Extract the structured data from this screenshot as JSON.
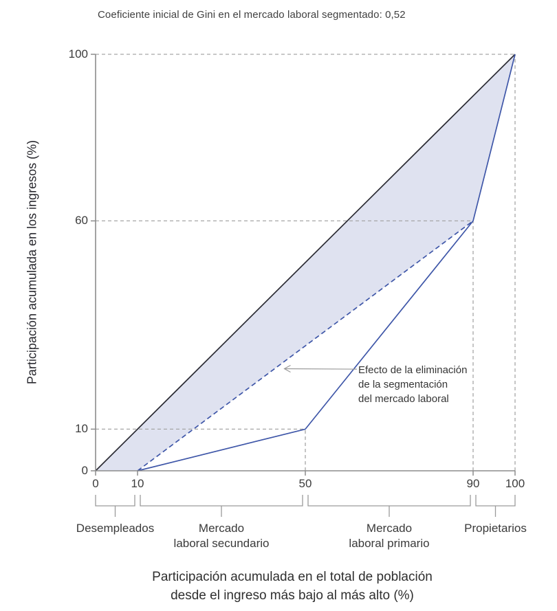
{
  "chart_data": {
    "type": "line",
    "title": "Coeficiente inicial de Gini en el mercado laboral segmentado: 0,52",
    "ylabel": "Participación acumulada en los ingresos (%)",
    "xlabel_lines": [
      "Participación acumulada en el total de población",
      "desde el ingreso más bajo al más alto (%)"
    ],
    "xlim": [
      0,
      100
    ],
    "ylim": [
      0,
      100
    ],
    "x_ticks": [
      0,
      10,
      50,
      90,
      100
    ],
    "y_ticks": [
      0,
      10,
      60,
      100
    ],
    "legend_position": "none",
    "grid": "dashed guide lines at key points only",
    "colors": {
      "curve_blue": "#3e56a8",
      "equality_black": "#2b2b33",
      "fill_lavender": "#dfe2f0",
      "axis_gray": "#8c8c8c",
      "guide_gray": "#a6a6a6",
      "bracket_gray": "#9a9a9a",
      "arrow_gray": "#9a9a9a"
    },
    "series": [
      {
        "id": "perfect-equality-line",
        "style": "solid",
        "color_key": "equality_black",
        "points": [
          [
            0,
            0
          ],
          [
            100,
            100
          ]
        ]
      },
      {
        "id": "lorenz-curve-segmented",
        "style": "solid",
        "color_key": "curve_blue",
        "points": [
          [
            10,
            0
          ],
          [
            50,
            10
          ],
          [
            90,
            60
          ],
          [
            100,
            100
          ]
        ]
      },
      {
        "id": "lorenz-curve-desegmented",
        "style": "dashed",
        "color_key": "curve_blue",
        "points": [
          [
            10,
            0
          ],
          [
            90,
            60
          ]
        ]
      }
    ],
    "shaded_region": {
      "fill_key": "fill_lavender",
      "points": [
        [
          0,
          0
        ],
        [
          10,
          0
        ],
        [
          90,
          60
        ],
        [
          100,
          100
        ]
      ]
    },
    "guides": [
      [
        0,
        100,
        100,
        100
      ],
      [
        0,
        60,
        90,
        60
      ],
      [
        0,
        10,
        50,
        10
      ],
      [
        50,
        0,
        50,
        10
      ],
      [
        90,
        0,
        90,
        60
      ],
      [
        100,
        0,
        100,
        100
      ]
    ],
    "annotation": {
      "lines": [
        "Efecto de la eliminación",
        "de la segmentación",
        "del mercado laboral"
      ],
      "arrow_from": [
        62.3,
        24.4
      ],
      "arrow_to": [
        45.0,
        24.5
      ]
    },
    "brackets": [
      {
        "from": 0,
        "to": 10,
        "label_lines": [
          "Desempleados"
        ]
      },
      {
        "from": 10,
        "to": 50,
        "label_lines": [
          "Mercado",
          "laboral secundario"
        ]
      },
      {
        "from": 50,
        "to": 90,
        "label_lines": [
          "Mercado",
          "laboral primario"
        ]
      },
      {
        "from": 90,
        "to": 100,
        "label_lines": [
          "Propietarios"
        ]
      }
    ]
  }
}
